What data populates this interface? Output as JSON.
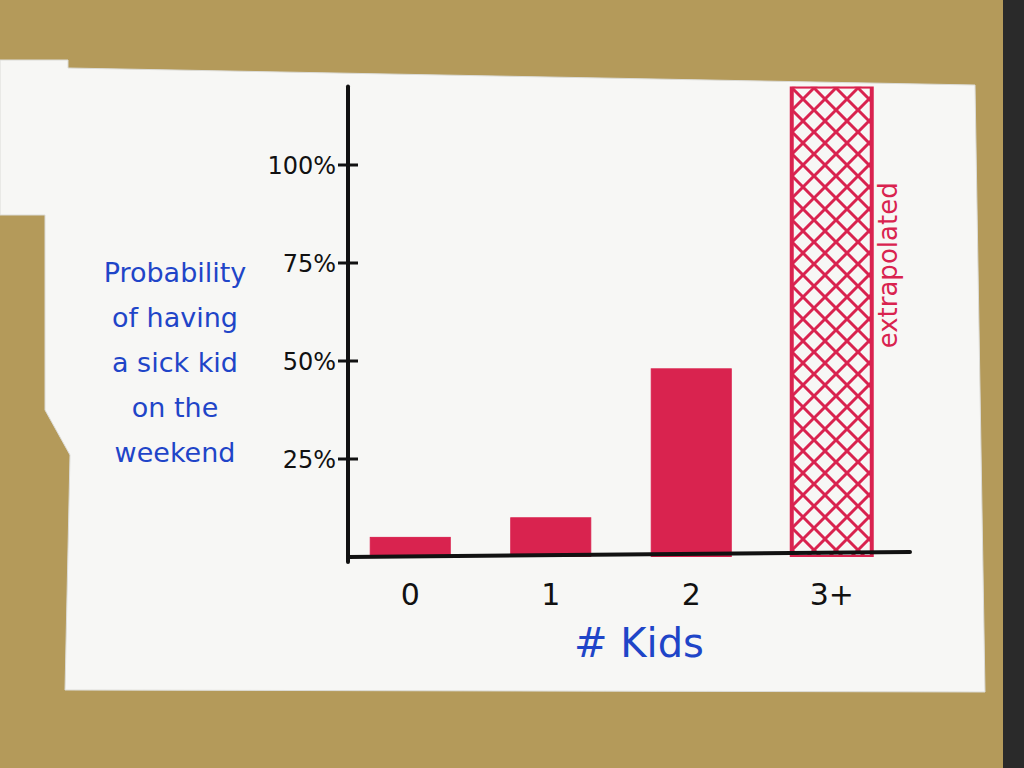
{
  "chart_data": {
    "type": "bar",
    "y_label": "Probability of having a sick kid on the weekend",
    "x_label": "# Kids",
    "categories": [
      "0",
      "1",
      "2",
      "3+"
    ],
    "values": [
      5,
      10,
      48,
      120
    ],
    "color": "#d9234f",
    "ylim": [
      0,
      120
    ],
    "yticks": [
      {
        "value": 25,
        "label": "25%"
      },
      {
        "value": 50,
        "label": "50%"
      },
      {
        "value": 75,
        "label": "75%"
      },
      {
        "value": 100,
        "label": "100%"
      }
    ],
    "grid": false,
    "annotations": [
      {
        "text": "extrapolated",
        "category": "3+"
      }
    ]
  }
}
